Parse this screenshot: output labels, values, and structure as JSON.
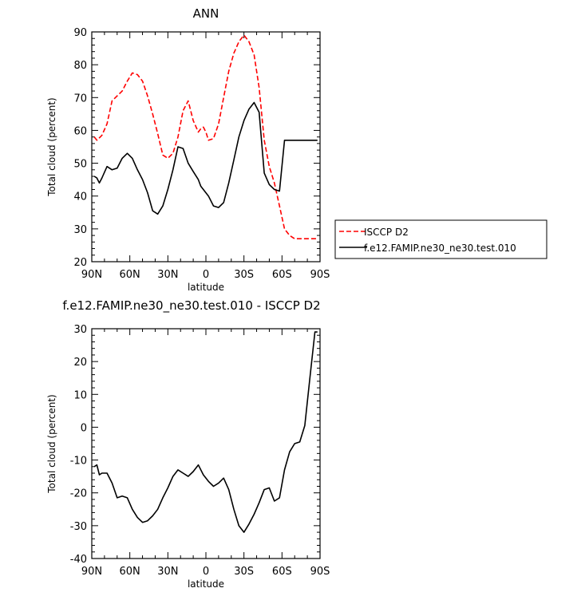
{
  "chart_data": [
    {
      "type": "line",
      "title": "ANN",
      "xlabel": "latitude",
      "ylabel": "Total cloud (percent)",
      "xlim": [
        -90,
        90
      ],
      "ylim": [
        20,
        90
      ],
      "x_ticks": [
        "90N",
        "60N",
        "30N",
        "0",
        "30S",
        "60S",
        "90S"
      ],
      "x_tick_values": [
        -90,
        -60,
        -30,
        0,
        30,
        60,
        90
      ],
      "y_ticks": [
        20,
        30,
        40,
        50,
        60,
        70,
        80,
        90
      ],
      "legend_position": "right, outside plot",
      "series": [
        {
          "name": "ISCCP D2",
          "color": "#ff0000",
          "dash": "dashed",
          "x": [
            -88,
            -86,
            -82,
            -78,
            -74,
            -70,
            -66,
            -62,
            -58,
            -54,
            -50,
            -46,
            -42,
            -38,
            -34,
            -30,
            -26,
            -22,
            -18,
            -14,
            -10,
            -6,
            -4,
            -2,
            0,
            2,
            6,
            10,
            14,
            18,
            22,
            26,
            30,
            34,
            38,
            42,
            46,
            50,
            54,
            58,
            62,
            66,
            70,
            74,
            78,
            82,
            84,
            86,
            88
          ],
          "y": [
            58,
            57,
            58.5,
            62,
            69,
            70.5,
            72,
            75,
            77.5,
            77,
            75,
            70.5,
            65,
            59,
            52.5,
            51.5,
            53,
            58,
            66,
            69,
            63,
            59.5,
            60.5,
            61,
            59.5,
            57,
            57.5,
            62,
            70,
            78,
            83.5,
            87,
            89,
            87,
            83,
            73,
            57,
            49,
            44,
            37,
            30,
            28,
            27,
            27,
            27,
            27,
            27,
            27,
            27
          ]
        },
        {
          "name": "f.e12.FAMIP.ne30_ne30.test.010",
          "color": "#000000",
          "dash": "solid",
          "x": [
            -88,
            -86,
            -84,
            -82,
            -78,
            -74,
            -70,
            -66,
            -62,
            -58,
            -54,
            -50,
            -46,
            -42,
            -38,
            -34,
            -30,
            -26,
            -22,
            -18,
            -14,
            -10,
            -6,
            -4,
            -2,
            0,
            2,
            6,
            10,
            14,
            18,
            22,
            26,
            30,
            34,
            38,
            42,
            46,
            50,
            54,
            58,
            62,
            66,
            70,
            74,
            78,
            82,
            84,
            86,
            88
          ],
          "y": [
            46,
            45.5,
            44,
            45.5,
            49,
            48,
            48.5,
            51.5,
            53,
            51.5,
            48,
            45,
            41,
            35.5,
            34.5,
            37,
            42,
            48,
            55,
            54.5,
            50,
            47.5,
            45,
            43,
            42,
            41,
            40,
            37,
            36.5,
            38,
            44,
            51,
            58,
            63,
            66.5,
            68.5,
            65.5,
            47,
            43.5,
            42,
            41.5,
            57,
            57,
            57,
            57,
            57,
            57,
            57,
            57,
            57
          ]
        }
      ]
    },
    {
      "type": "line",
      "title": "f.e12.FAMIP.ne30_ne30.test.010 - ISCCP D2",
      "xlabel": "latitude",
      "ylabel": "Total cloud (percent)",
      "xlim": [
        -90,
        90
      ],
      "ylim": [
        -40,
        30
      ],
      "x_ticks": [
        "90N",
        "60N",
        "30N",
        "0",
        "30S",
        "60S",
        "90S"
      ],
      "x_tick_values": [
        -90,
        -60,
        -30,
        0,
        30,
        60,
        90
      ],
      "y_ticks": [
        -40,
        -30,
        -20,
        -10,
        0,
        10,
        20,
        30
      ],
      "series": [
        {
          "color": "#000000",
          "dash": "solid",
          "x": [
            -88,
            -86,
            -84,
            -82,
            -78,
            -74,
            -70,
            -66,
            -62,
            -58,
            -54,
            -50,
            -46,
            -42,
            -38,
            -34,
            -30,
            -26,
            -22,
            -18,
            -14,
            -10,
            -6,
            -2,
            2,
            6,
            10,
            14,
            18,
            22,
            26,
            30,
            34,
            38,
            42,
            46,
            50,
            54,
            58,
            62,
            66,
            70,
            74,
            78,
            82,
            86,
            88
          ],
          "y": [
            -12,
            -11.5,
            -14.5,
            -14,
            -14,
            -17,
            -21.5,
            -21,
            -21.5,
            -25,
            -27.5,
            -29,
            -28.5,
            -27,
            -25,
            -21.5,
            -18.5,
            -15,
            -13,
            -14,
            -15,
            -13.5,
            -11.5,
            -14.5,
            -16.5,
            -18,
            -17,
            -15.5,
            -19,
            -25,
            -30,
            -32,
            -29.5,
            -26.5,
            -23,
            -19,
            -18.5,
            -22.5,
            -21.5,
            -13,
            -7.5,
            -5,
            -4.5,
            0.5,
            15,
            29,
            29
          ]
        }
      ]
    }
  ]
}
